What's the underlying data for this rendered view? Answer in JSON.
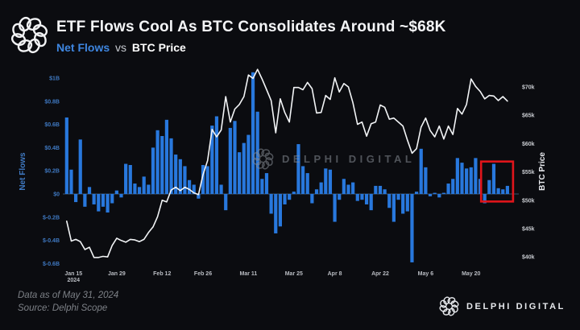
{
  "header": {
    "title": "ETF Flows Cool As BTC Consolidates Around ~$68K",
    "subtitle_series": "Net Flows",
    "subtitle_sep": "vs",
    "subtitle_overlay": "BTC Price"
  },
  "watermark": {
    "text": "DELPHI DIGITAL"
  },
  "footer": {
    "data_as_of": "Data as of May 31, 2024",
    "source": "Source: Delphi Scope",
    "brand": "DELPHI DIGITAL"
  },
  "colors": {
    "background": "#0b0c10",
    "bar": "#2878dd",
    "price_line": "#f2f4f6",
    "left_axis_text": "#3f79c2",
    "right_axis_text": "#c9ccd1",
    "x_axis_text": "#b9bcc2",
    "zero_line": "#4a6a8e",
    "highlight": "#e0151b"
  },
  "chart_data": {
    "type": "bar+line",
    "title": "Net Flows vs BTC Price",
    "legend_position": "top-left subtitle",
    "grid": "off",
    "dates": [
      "Jan 11",
      "Jan 12",
      "Jan 16",
      "Jan 17",
      "Jan 18",
      "Jan 19",
      "Jan 22",
      "Jan 23",
      "Jan 24",
      "Jan 25",
      "Jan 26",
      "Jan 29",
      "Jan 30",
      "Jan 31",
      "Feb 1",
      "Feb 2",
      "Feb 5",
      "Feb 6",
      "Feb 7",
      "Feb 8",
      "Feb 9",
      "Feb 12",
      "Feb 13",
      "Feb 14",
      "Feb 15",
      "Feb 16",
      "Feb 20",
      "Feb 21",
      "Feb 22",
      "Feb 23",
      "Feb 26",
      "Feb 27",
      "Feb 28",
      "Feb 29",
      "Mar 1",
      "Mar 4",
      "Mar 5",
      "Mar 6",
      "Mar 7",
      "Mar 8",
      "Mar 11",
      "Mar 12",
      "Mar 13",
      "Mar 14",
      "Mar 15",
      "Mar 18",
      "Mar 19",
      "Mar 20",
      "Mar 21",
      "Mar 22",
      "Mar 25",
      "Mar 26",
      "Mar 27",
      "Mar 28",
      "Apr 1",
      "Apr 2",
      "Apr 3",
      "Apr 4",
      "Apr 5",
      "Apr 8",
      "Apr 9",
      "Apr 10",
      "Apr 11",
      "Apr 12",
      "Apr 15",
      "Apr 16",
      "Apr 17",
      "Apr 18",
      "Apr 19",
      "Apr 22",
      "Apr 23",
      "Apr 24",
      "Apr 25",
      "Apr 26",
      "Apr 29",
      "Apr 30",
      "May 1",
      "May 2",
      "May 3",
      "May 6",
      "May 7",
      "May 8",
      "May 9",
      "May 10",
      "May 13",
      "May 14",
      "May 15",
      "May 16",
      "May 17",
      "May 20",
      "May 21",
      "May 22",
      "May 23",
      "May 24",
      "May 28",
      "May 29",
      "May 30",
      "May 31"
    ],
    "series": [
      {
        "name": "Net Flows",
        "type": "bar",
        "unit": "$B",
        "color": "#2878dd",
        "values": [
          0.66,
          0.21,
          -0.07,
          0.47,
          -0.11,
          0.06,
          -0.09,
          -0.15,
          -0.11,
          -0.16,
          -0.08,
          0.03,
          -0.03,
          0.26,
          0.25,
          0.09,
          0.06,
          0.15,
          0.08,
          0.4,
          0.55,
          0.5,
          0.64,
          0.48,
          0.34,
          0.3,
          0.24,
          0.12,
          0.08,
          -0.04,
          0.25,
          0.24,
          0.59,
          0.67,
          0.08,
          -0.14,
          0.57,
          0.63,
          0.36,
          0.44,
          0.51,
          1.05,
          0.71,
          0.13,
          0.18,
          -0.17,
          -0.34,
          -0.28,
          -0.09,
          -0.05,
          0.02,
          0.43,
          0.24,
          0.18,
          -0.08,
          0.04,
          0.1,
          0.22,
          0.21,
          -0.24,
          -0.05,
          0.13,
          0.08,
          0.1,
          -0.06,
          -0.05,
          -0.09,
          -0.14,
          0.07,
          0.07,
          0.04,
          -0.12,
          -0.24,
          -0.05,
          -0.17,
          -0.15,
          -0.59,
          0.02,
          0.39,
          0.23,
          -0.02,
          0.01,
          -0.03,
          0.01,
          0.09,
          0.13,
          0.31,
          0.27,
          0.22,
          0.23,
          0.31,
          0.13,
          -0.08,
          0.12,
          0.26,
          0.05,
          0.04,
          0.07
        ]
      },
      {
        "name": "BTC Price",
        "type": "line",
        "unit": "$k",
        "color": "#f2f4f6",
        "values": [
          46.3,
          42.8,
          43.1,
          42.7,
          41.3,
          41.7,
          39.9,
          39.9,
          40.1,
          40.0,
          42.0,
          43.3,
          42.9,
          42.6,
          43.1,
          43.0,
          42.7,
          43.1,
          44.3,
          45.3,
          47.1,
          50.0,
          49.7,
          51.8,
          52.3,
          51.7,
          52.3,
          51.9,
          51.3,
          51.0,
          54.5,
          57.0,
          62.5,
          61.2,
          62.4,
          68.3,
          63.8,
          66.1,
          66.9,
          68.3,
          72.1,
          71.5,
          73.1,
          71.4,
          69.5,
          67.6,
          61.9,
          67.9,
          65.5,
          63.8,
          69.9,
          69.9,
          69.5,
          70.8,
          69.7,
          65.4,
          65.5,
          68.5,
          67.8,
          71.6,
          69.1,
          70.6,
          70.0,
          67.2,
          63.4,
          63.8,
          61.3,
          63.5,
          63.8,
          66.8,
          66.4,
          64.3,
          64.5,
          63.8,
          63.1,
          60.6,
          58.3,
          59.1,
          62.9,
          64.5,
          62.3,
          61.2,
          63.1,
          60.8,
          63.1,
          61.6,
          66.2,
          65.2,
          66.9,
          71.4,
          70.1,
          69.2,
          67.9,
          68.5,
          68.4,
          67.6,
          68.3,
          67.5
        ]
      }
    ],
    "y_left": {
      "title": "Net Flows",
      "tick_labels": [
        "$1B",
        "$0.8B",
        "$0.6B",
        "$0.4B",
        "$0.2B",
        "$0",
        "$-0.2B",
        "$-0.4B",
        "$-0.6B"
      ],
      "tick_values": [
        1.0,
        0.8,
        0.6,
        0.4,
        0.2,
        0,
        -0.2,
        -0.4,
        -0.6
      ],
      "range": [
        -0.75,
        1.1
      ]
    },
    "y_right": {
      "title": "BTC Price",
      "tick_labels": [
        "$70k",
        "$65k",
        "$60k",
        "$55k",
        "$50k",
        "$45k",
        "$40k"
      ],
      "tick_values": [
        70,
        65,
        60,
        55,
        50,
        45,
        40
      ],
      "range": [
        37,
        74
      ]
    },
    "x_ticks": [
      {
        "label": "Jan 15",
        "sub": "2024",
        "i": 1.5
      },
      {
        "label": "Jan 29",
        "i": 11
      },
      {
        "label": "Feb 12",
        "i": 21
      },
      {
        "label": "Feb 26",
        "i": 30
      },
      {
        "label": "Mar 11",
        "i": 40
      },
      {
        "label": "Mar 25",
        "i": 50
      },
      {
        "label": "Apr 8",
        "i": 59
      },
      {
        "label": "Apr 22",
        "i": 69
      },
      {
        "label": "May 6",
        "i": 79
      },
      {
        "label": "May 20",
        "i": 89
      }
    ],
    "highlight": {
      "from_date": "May 23",
      "to_date": "May 31",
      "value_top": 0.28,
      "value_bottom": -0.065,
      "color": "#e0151b"
    }
  }
}
